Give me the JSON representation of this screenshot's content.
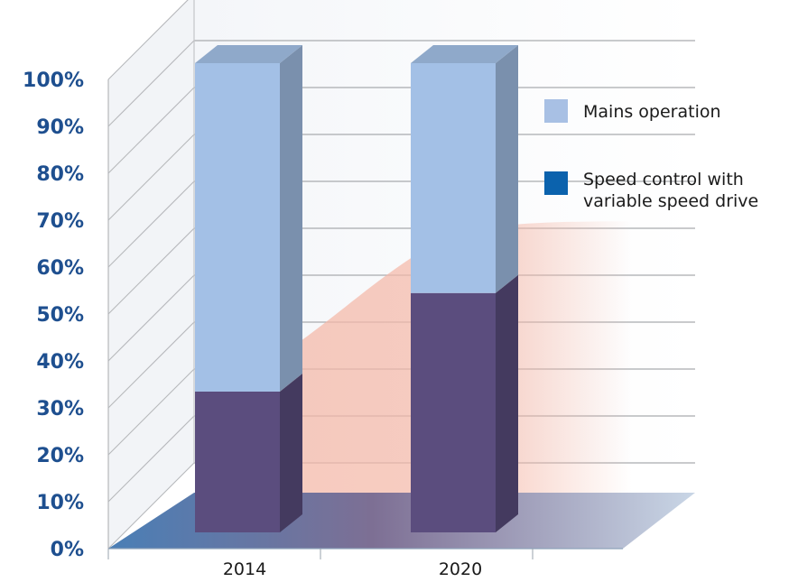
{
  "chart_data": {
    "type": "bar",
    "stacked": true,
    "three_d": true,
    "categories": [
      "2014",
      "2020"
    ],
    "series": [
      {
        "name": "Speed control with variable speed drive",
        "legend_lines": [
          "Speed control with",
          "variable speed drive"
        ],
        "values": [
          30,
          51
        ],
        "color": "#5b4d7e"
      },
      {
        "name": "Mains operation",
        "legend_lines": [
          "Mains operation"
        ],
        "values": [
          70,
          49
        ],
        "color": "#a3c0e6"
      }
    ],
    "legend_order": [
      1,
      0
    ],
    "legend_swatch_colors": [
      "#a8c0e4",
      "#0b62ad"
    ],
    "yticks": [
      "0%",
      "10%",
      "20%",
      "30%",
      "40%",
      "50%",
      "60%",
      "70%",
      "80%",
      "90%",
      "100%"
    ],
    "ylim": [
      0,
      100
    ],
    "grid": true,
    "legend_position": "right",
    "title": "",
    "xlabel": "",
    "ylabel": "",
    "colors": {
      "axis_text": "#1e4f8f",
      "floor": "#4a7fb6",
      "trend_area": "#f4b8a8"
    }
  }
}
